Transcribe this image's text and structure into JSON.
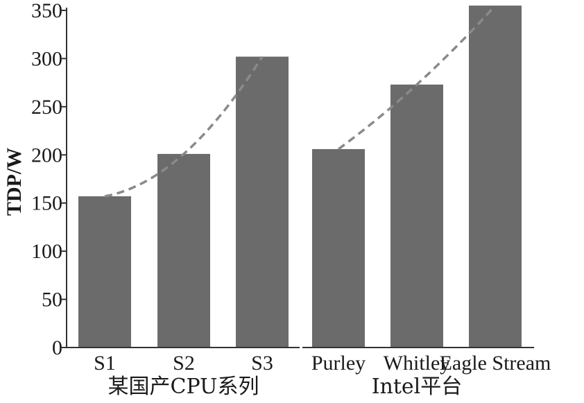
{
  "chart_data": {
    "type": "bar",
    "ylabel": "TDP/W",
    "ylim": [
      0,
      350
    ],
    "yticks": [
      0,
      50,
      100,
      150,
      200,
      250,
      300,
      350
    ],
    "bar_color": "#6b6b6b",
    "trend_color": "#8a8a8a",
    "grid": false,
    "groups": [
      {
        "label": "某国产CPU系列",
        "categories": [
          "S1",
          "S2",
          "S3"
        ],
        "values": [
          157,
          201,
          302
        ]
      },
      {
        "label": "Intel平台",
        "categories": [
          "Purley",
          "Whitley",
          "Eagle Stream"
        ],
        "values": [
          206,
          273,
          355
        ]
      }
    ]
  }
}
